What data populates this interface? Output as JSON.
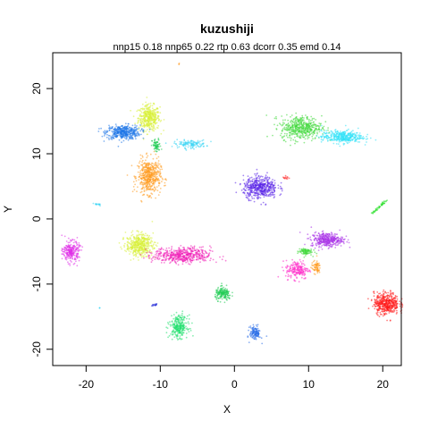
{
  "chart_data": {
    "type": "scatter",
    "title": "kuzushiji",
    "subtitle": "nnp15 0.18 nnp65 0.22 rtp 0.63 dcorr 0.35 emd 0.14",
    "xlabel": "X",
    "ylabel": "Y",
    "xlim": [
      -24.5,
      22.5
    ],
    "ylim": [
      -22.5,
      25.5
    ],
    "xticks": [
      -20,
      -10,
      0,
      10,
      20
    ],
    "yticks": [
      -20,
      -10,
      0,
      10,
      20
    ],
    "grid": false,
    "legend": "none",
    "clusters": [
      {
        "color": "#d8f03a",
        "cx": -11.5,
        "cy": 15.5,
        "sx": 1.2,
        "sy": 1.6,
        "n": 420
      },
      {
        "color": "#1f77e8",
        "cx": -15.0,
        "cy": 13.3,
        "sx": 1.9,
        "sy": 0.9,
        "n": 420
      },
      {
        "color": "#22cc55",
        "cx": -10.5,
        "cy": 11.2,
        "sx": 0.5,
        "sy": 0.9,
        "n": 70
      },
      {
        "color": "#33d4f4",
        "cx": -6.0,
        "cy": 11.5,
        "sx": 1.8,
        "sy": 0.5,
        "n": 120
      },
      {
        "color": "#ff9a1f",
        "cx": -11.5,
        "cy": 6.5,
        "sx": 1.3,
        "sy": 2.2,
        "n": 500
      },
      {
        "color": "#ff9a1f",
        "cx": -7.5,
        "cy": 23.8,
        "sx": 0.05,
        "sy": 0.15,
        "n": 3
      },
      {
        "color": "#3fd83a",
        "cx": 9.0,
        "cy": 14.0,
        "sx": 2.3,
        "sy": 1.5,
        "n": 480
      },
      {
        "color": "#2fe2f8",
        "cx": 14.5,
        "cy": 12.6,
        "sx": 2.3,
        "sy": 0.8,
        "n": 380
      },
      {
        "color": "#5a25e8",
        "cx": 3.5,
        "cy": 4.8,
        "sx": 1.9,
        "sy": 1.4,
        "n": 480
      },
      {
        "color": "#ff2020",
        "cx": 7.0,
        "cy": 6.3,
        "sx": 0.4,
        "sy": 0.2,
        "n": 12
      },
      {
        "color": "#33d4f4",
        "cx": -18.5,
        "cy": 2.2,
        "sx": 0.7,
        "sy": 0.15,
        "n": 14
      },
      {
        "color": "#2ee02e",
        "cx": 19.5,
        "cy": 1.8,
        "sx": 1.0,
        "sy": 0.9,
        "n": 50,
        "line": true,
        "dx": 1.0,
        "dy": 1.05
      },
      {
        "color": "#e030e8",
        "cx": -22.0,
        "cy": -5.0,
        "sx": 0.9,
        "sy": 1.3,
        "n": 260
      },
      {
        "color": "#d8f03a",
        "cx": -12.8,
        "cy": -4.0,
        "sx": 1.5,
        "sy": 1.4,
        "n": 460
      },
      {
        "color": "#f020b8",
        "cx": -7.0,
        "cy": -5.6,
        "sx": 3.2,
        "sy": 1.0,
        "n": 520
      },
      {
        "color": "#ff28c8",
        "cx": 8.5,
        "cy": -7.8,
        "sx": 1.3,
        "sy": 1.2,
        "n": 200
      },
      {
        "color": "#a830e8",
        "cx": 12.5,
        "cy": -3.2,
        "sx": 1.8,
        "sy": 0.9,
        "n": 360
      },
      {
        "color": "#3fd83a",
        "cx": 9.5,
        "cy": -5.0,
        "sx": 0.8,
        "sy": 0.5,
        "n": 90
      },
      {
        "color": "#ff9a1f",
        "cx": 11.0,
        "cy": -7.4,
        "sx": 0.5,
        "sy": 0.8,
        "n": 70
      },
      {
        "color": "#ff1a1a",
        "cx": 20.5,
        "cy": -13.0,
        "sx": 1.4,
        "sy": 1.4,
        "n": 460
      },
      {
        "color": "#22cc55",
        "cx": -1.5,
        "cy": -11.5,
        "sx": 0.9,
        "sy": 0.8,
        "n": 180
      },
      {
        "color": "#2a32d8",
        "cx": -10.8,
        "cy": -13.2,
        "sx": 0.4,
        "sy": 0.15,
        "n": 15
      },
      {
        "color": "#22e070",
        "cx": -7.5,
        "cy": -16.5,
        "sx": 1.0,
        "sy": 1.4,
        "n": 280
      },
      {
        "color": "#2a6ee8",
        "cx": 2.8,
        "cy": -17.5,
        "sx": 0.6,
        "sy": 0.9,
        "n": 130
      },
      {
        "color": "#33d4f4",
        "cx": -18.2,
        "cy": -13.7,
        "sx": 0.05,
        "sy": 0.15,
        "n": 3
      }
    ]
  }
}
